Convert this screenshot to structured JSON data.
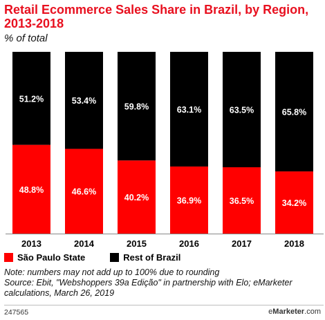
{
  "title": "Retail Ecommerce Sales Share in Brazil, by Region, 2013-2018",
  "subtitle": "% of total",
  "colors": {
    "sao_paulo": "#ff0000",
    "rest": "#000000",
    "title": "#e8101f"
  },
  "legend": [
    {
      "label": "São Paulo State",
      "color": "#ff0000"
    },
    {
      "label": "Rest of Brazil",
      "color": "#000000"
    }
  ],
  "footer": {
    "note": "Note: numbers may not add up to 100% due to rounding",
    "source": "Source: Ebit, \"Webshoppers 39a Edição\" in partnership with Elo; eMarketer calculations, March 26, 2019",
    "id": "247565",
    "brand_prefix": "e",
    "brand_name": "Marketer",
    "brand_suffix": ".com"
  },
  "chart_data": {
    "type": "bar",
    "stacked": true,
    "categories": [
      "2013",
      "2014",
      "2015",
      "2016",
      "2017",
      "2018"
    ],
    "series": [
      {
        "name": "São Paulo State",
        "values": [
          48.8,
          46.6,
          40.2,
          36.9,
          36.5,
          34.2
        ],
        "labels": [
          "48.8%",
          "46.6%",
          "40.2%",
          "36.9%",
          "36.5%",
          "34.2%"
        ]
      },
      {
        "name": "Rest of Brazil",
        "values": [
          51.2,
          53.4,
          59.8,
          63.1,
          63.5,
          65.8
        ],
        "labels": [
          "51.2%",
          "53.4%",
          "59.8%",
          "63.1%",
          "63.5%",
          "65.8%"
        ]
      }
    ],
    "ylim": [
      0,
      100
    ],
    "grid": false,
    "legend_position": "bottom-left"
  }
}
